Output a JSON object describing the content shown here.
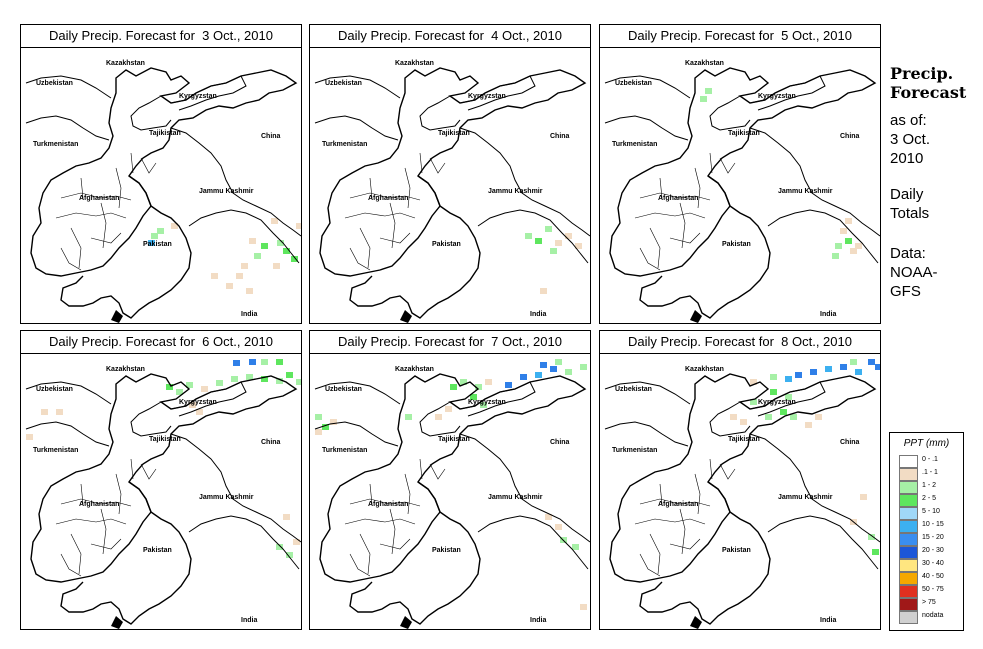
{
  "panels": [
    {
      "title": "Daily Precip. Forecast for  3 Oct., 2010",
      "patches": [
        {
          "x": 275,
          "y": 175,
          "c": "#f2dcc4"
        },
        {
          "x": 283,
          "y": 183,
          "c": "#f2dcc4"
        },
        {
          "x": 290,
          "y": 190,
          "c": "#a6f0a6"
        },
        {
          "x": 250,
          "y": 170,
          "c": "#f2dcc4"
        },
        {
          "x": 262,
          "y": 200,
          "c": "#5ee65e"
        },
        {
          "x": 270,
          "y": 208,
          "c": "#5ee65e"
        },
        {
          "x": 256,
          "y": 192,
          "c": "#a6f0a6"
        },
        {
          "x": 240,
          "y": 195,
          "c": "#5ee65e"
        },
        {
          "x": 233,
          "y": 205,
          "c": "#a6f0a6"
        },
        {
          "x": 228,
          "y": 190,
          "c": "#f2dcc4"
        },
        {
          "x": 215,
          "y": 225,
          "c": "#f2dcc4"
        },
        {
          "x": 205,
          "y": 235,
          "c": "#f2dcc4"
        },
        {
          "x": 190,
          "y": 225,
          "c": "#f2dcc4"
        },
        {
          "x": 220,
          "y": 215,
          "c": "#f2dcc4"
        },
        {
          "x": 130,
          "y": 185,
          "c": "#a6f0a6"
        },
        {
          "x": 127,
          "y": 192,
          "c": "#3cb0f0"
        },
        {
          "x": 136,
          "y": 180,
          "c": "#a6f0a6"
        },
        {
          "x": 225,
          "y": 240,
          "c": "#f2dcc4"
        },
        {
          "x": 252,
          "y": 215,
          "c": "#f2dcc4"
        },
        {
          "x": 275,
          "y": 280,
          "c": "#5ee65e"
        },
        {
          "x": 150,
          "y": 175,
          "c": "#f2dcc4"
        }
      ]
    },
    {
      "title": "Daily Precip. Forecast for  4 Oct., 2010",
      "patches": [
        {
          "x": 215,
          "y": 185,
          "c": "#a6f0a6"
        },
        {
          "x": 225,
          "y": 190,
          "c": "#5ee65e"
        },
        {
          "x": 235,
          "y": 178,
          "c": "#a6f0a6"
        },
        {
          "x": 245,
          "y": 192,
          "c": "#f2dcc4"
        },
        {
          "x": 255,
          "y": 185,
          "c": "#f2dcc4"
        },
        {
          "x": 265,
          "y": 195,
          "c": "#f2dcc4"
        },
        {
          "x": 240,
          "y": 200,
          "c": "#a6f0a6"
        },
        {
          "x": 230,
          "y": 240,
          "c": "#f2dcc4"
        }
      ]
    },
    {
      "title": "Daily Precip. Forecast for  5 Oct., 2010",
      "patches": [
        {
          "x": 100,
          "y": 48,
          "c": "#a6f0a6"
        },
        {
          "x": 105,
          "y": 40,
          "c": "#a6f0a6"
        },
        {
          "x": 240,
          "y": 180,
          "c": "#f2dcc4"
        },
        {
          "x": 245,
          "y": 170,
          "c": "#f2dcc4"
        },
        {
          "x": 235,
          "y": 195,
          "c": "#a6f0a6"
        },
        {
          "x": 245,
          "y": 190,
          "c": "#5ee65e"
        },
        {
          "x": 255,
          "y": 195,
          "c": "#f2dcc4"
        },
        {
          "x": 250,
          "y": 200,
          "c": "#f2dcc4"
        },
        {
          "x": 232,
          "y": 205,
          "c": "#a6f0a6"
        },
        {
          "x": 107,
          "y": 276,
          "c": "#f2dcc4"
        },
        {
          "x": 110,
          "y": 290,
          "c": "#f2dcc4"
        }
      ]
    },
    {
      "title": "Daily Precip. Forecast for  6 Oct., 2010",
      "patches": [
        {
          "x": 20,
          "y": 55,
          "c": "#f2dcc4"
        },
        {
          "x": 35,
          "y": 55,
          "c": "#f2dcc4"
        },
        {
          "x": 5,
          "y": 80,
          "c": "#f2dcc4"
        },
        {
          "x": 145,
          "y": 30,
          "c": "#5ee65e"
        },
        {
          "x": 155,
          "y": 35,
          "c": "#a6f0a6"
        },
        {
          "x": 165,
          "y": 28,
          "c": "#a6f0a6"
        },
        {
          "x": 180,
          "y": 32,
          "c": "#f2dcc4"
        },
        {
          "x": 195,
          "y": 26,
          "c": "#a6f0a6"
        },
        {
          "x": 210,
          "y": 22,
          "c": "#a6f0a6"
        },
        {
          "x": 225,
          "y": 20,
          "c": "#a6f0a6"
        },
        {
          "x": 240,
          "y": 22,
          "c": "#5ee65e"
        },
        {
          "x": 255,
          "y": 24,
          "c": "#a6f0a6"
        },
        {
          "x": 265,
          "y": 18,
          "c": "#5ee65e"
        },
        {
          "x": 275,
          "y": 25,
          "c": "#a6f0a6"
        },
        {
          "x": 212,
          "y": 6,
          "c": "#2f7fe8"
        },
        {
          "x": 228,
          "y": 5,
          "c": "#2f7fe8"
        },
        {
          "x": 240,
          "y": 5,
          "c": "#a6f0a6"
        },
        {
          "x": 255,
          "y": 5,
          "c": "#5ee65e"
        },
        {
          "x": 168,
          "y": 48,
          "c": "#f2dcc4"
        },
        {
          "x": 175,
          "y": 55,
          "c": "#f2dcc4"
        },
        {
          "x": 262,
          "y": 160,
          "c": "#f2dcc4"
        },
        {
          "x": 255,
          "y": 190,
          "c": "#a6f0a6"
        },
        {
          "x": 265,
          "y": 198,
          "c": "#a6f0a6"
        },
        {
          "x": 272,
          "y": 185,
          "c": "#f2dcc4"
        }
      ]
    },
    {
      "title": "Daily Precip. Forecast for  7 Oct., 2010",
      "patches": [
        {
          "x": 5,
          "y": 60,
          "c": "#a6f0a6"
        },
        {
          "x": 12,
          "y": 70,
          "c": "#5ee65e"
        },
        {
          "x": 20,
          "y": 65,
          "c": "#f2dcc4"
        },
        {
          "x": 5,
          "y": 75,
          "c": "#f2dcc4"
        },
        {
          "x": 95,
          "y": 60,
          "c": "#a6f0a6"
        },
        {
          "x": 140,
          "y": 30,
          "c": "#5ee65e"
        },
        {
          "x": 150,
          "y": 25,
          "c": "#a6f0a6"
        },
        {
          "x": 165,
          "y": 30,
          "c": "#a6f0a6"
        },
        {
          "x": 175,
          "y": 25,
          "c": "#f2dcc4"
        },
        {
          "x": 195,
          "y": 28,
          "c": "#2f7fe8"
        },
        {
          "x": 210,
          "y": 20,
          "c": "#2f7fe8"
        },
        {
          "x": 225,
          "y": 18,
          "c": "#3cb0f0"
        },
        {
          "x": 240,
          "y": 12,
          "c": "#2f7fe8"
        },
        {
          "x": 255,
          "y": 15,
          "c": "#a6f0a6"
        },
        {
          "x": 270,
          "y": 10,
          "c": "#a6f0a6"
        },
        {
          "x": 230,
          "y": 8,
          "c": "#2f7fe8"
        },
        {
          "x": 245,
          "y": 5,
          "c": "#a6f0a6"
        },
        {
          "x": 160,
          "y": 40,
          "c": "#5ee65e"
        },
        {
          "x": 170,
          "y": 48,
          "c": "#a6f0a6"
        },
        {
          "x": 135,
          "y": 52,
          "c": "#f2dcc4"
        },
        {
          "x": 125,
          "y": 60,
          "c": "#f2dcc4"
        },
        {
          "x": 235,
          "y": 160,
          "c": "#f2dcc4"
        },
        {
          "x": 245,
          "y": 170,
          "c": "#f2dcc4"
        },
        {
          "x": 250,
          "y": 183,
          "c": "#a6f0a6"
        },
        {
          "x": 262,
          "y": 190,
          "c": "#a6f0a6"
        },
        {
          "x": 270,
          "y": 250,
          "c": "#f2dcc4"
        }
      ]
    },
    {
      "title": "Daily Precip. Forecast for  8 Oct., 2010",
      "patches": [
        {
          "x": 150,
          "y": 25,
          "c": "#f2dcc4"
        },
        {
          "x": 170,
          "y": 20,
          "c": "#a6f0a6"
        },
        {
          "x": 185,
          "y": 22,
          "c": "#3cb0f0"
        },
        {
          "x": 195,
          "y": 18,
          "c": "#2f7fe8"
        },
        {
          "x": 210,
          "y": 15,
          "c": "#2f7fe8"
        },
        {
          "x": 225,
          "y": 12,
          "c": "#3cb0f0"
        },
        {
          "x": 240,
          "y": 10,
          "c": "#2f7fe8"
        },
        {
          "x": 255,
          "y": 15,
          "c": "#3cb0f0"
        },
        {
          "x": 268,
          "y": 5,
          "c": "#2f7fe8"
        },
        {
          "x": 275,
          "y": 10,
          "c": "#2f7fe8"
        },
        {
          "x": 250,
          "y": 5,
          "c": "#a6f0a6"
        },
        {
          "x": 170,
          "y": 35,
          "c": "#5ee65e"
        },
        {
          "x": 185,
          "y": 40,
          "c": "#a6f0a6"
        },
        {
          "x": 150,
          "y": 45,
          "c": "#a6f0a6"
        },
        {
          "x": 130,
          "y": 60,
          "c": "#f2dcc4"
        },
        {
          "x": 140,
          "y": 65,
          "c": "#f2dcc4"
        },
        {
          "x": 165,
          "y": 60,
          "c": "#a6f0a6"
        },
        {
          "x": 180,
          "y": 55,
          "c": "#5ee65e"
        },
        {
          "x": 190,
          "y": 60,
          "c": "#a6f0a6"
        },
        {
          "x": 205,
          "y": 68,
          "c": "#f2dcc4"
        },
        {
          "x": 215,
          "y": 60,
          "c": "#f2dcc4"
        },
        {
          "x": 260,
          "y": 140,
          "c": "#f2dcc4"
        },
        {
          "x": 250,
          "y": 165,
          "c": "#f2dcc4"
        },
        {
          "x": 268,
          "y": 180,
          "c": "#a6f0a6"
        },
        {
          "x": 272,
          "y": 195,
          "c": "#5ee65e"
        }
      ]
    }
  ],
  "map_labels": {
    "kazakhstan": "Kazakhstan",
    "uzbekistan": "Uzbekistan",
    "kyrgyzstan": "Kyrgyzstan",
    "tajikistan": "Tajikistan",
    "turkmenistan": "Turkmenistan",
    "china": "China",
    "jammu_kashmir": "Jammu Kashmir",
    "afghanistan": "Afghanistan",
    "pakistan": "Pakistan",
    "india": "India"
  },
  "side": {
    "head1": "Precip.",
    "head2": "Forecast",
    "as_of": "as of:",
    "date": "3 Oct.",
    "year": "2010",
    "daily": "Daily",
    "totals": "Totals",
    "data_label": "Data:",
    "source1": "NOAA-",
    "source2": "GFS"
  },
  "legend": {
    "title": "PPT (mm)",
    "items": [
      {
        "label": "0 - .1",
        "color": "#ffffff"
      },
      {
        "label": ".1 - 1",
        "color": "#f2dcc4"
      },
      {
        "label": "1 - 2",
        "color": "#a6f0a6"
      },
      {
        "label": "2 - 5",
        "color": "#5ee65e"
      },
      {
        "label": "5 - 10",
        "color": "#a0d8f8"
      },
      {
        "label": "10 - 15",
        "color": "#3cb0f0"
      },
      {
        "label": "15 - 20",
        "color": "#3a8ef0"
      },
      {
        "label": "20 - 30",
        "color": "#1c56d8"
      },
      {
        "label": "30 - 40",
        "color": "#ffe680"
      },
      {
        "label": "40 - 50",
        "color": "#f5a800"
      },
      {
        "label": "50 - 75",
        "color": "#e03020"
      },
      {
        "label": "> 75",
        "color": "#a01818"
      },
      {
        "label": "nodata",
        "color": "#d0d0d0"
      }
    ]
  }
}
